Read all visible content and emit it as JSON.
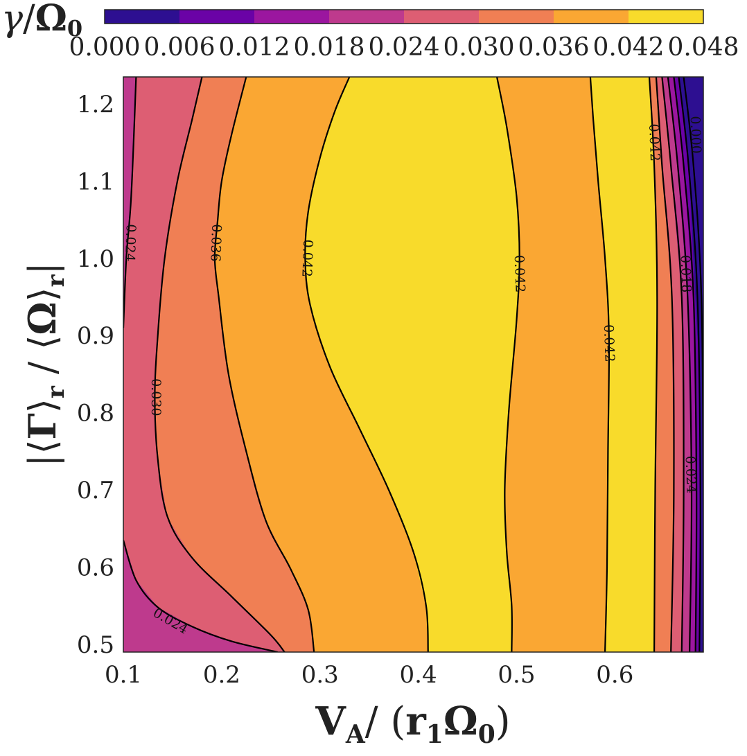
{
  "chart_data": {
    "type": "contour",
    "colorbar": {
      "label": "γ/Ω₀",
      "ticks": [
        "0.000",
        "0.006",
        "0.012",
        "0.018",
        "0.024",
        "0.030",
        "0.036",
        "0.042",
        "0.048"
      ],
      "levels": [
        0.0,
        0.006,
        0.012,
        0.018,
        0.024,
        0.03,
        0.036,
        0.042,
        0.048
      ],
      "colors": [
        "#2d0f91",
        "#6a02a6",
        "#9b169f",
        "#be3a8d",
        "#dd5e73",
        "#f07f54",
        "#faa733",
        "#f8db2b"
      ]
    },
    "xlabel": "V_A/(r₁Ω₀)",
    "ylabel": "|⟨Γ⟩_r / ⟨Ω⟩_r|",
    "xlim": [
      0.1,
      0.69
    ],
    "ylim": [
      0.49,
      1.235
    ],
    "x_ticks": [
      "0.1",
      "0.2",
      "0.3",
      "0.4",
      "0.5",
      "0.6"
    ],
    "x_tick_values": [
      0.1,
      0.2,
      0.3,
      0.4,
      0.5,
      0.6
    ],
    "y_ticks": [
      "0.5",
      "0.6",
      "0.7",
      "0.8",
      "0.9",
      "1.0",
      "1.1",
      "1.2"
    ],
    "y_tick_values": [
      0.5,
      0.6,
      0.7,
      0.8,
      0.9,
      1.0,
      1.1,
      1.2
    ],
    "contours": [
      {
        "level": 0.024,
        "segments": [
          [
            [
              0.1,
              0.91
            ],
            [
              0.103,
              1.0
            ],
            [
              0.108,
              1.08
            ],
            [
              0.113,
              1.235
            ]
          ],
          [
            [
              0.1,
              0.635
            ],
            [
              0.113,
              0.583
            ],
            [
              0.135,
              0.548
            ],
            [
              0.17,
              0.523
            ],
            [
              0.21,
              0.504
            ],
            [
              0.257,
              0.49
            ]
          ]
        ]
      },
      {
        "level": 0.03,
        "segments": [
          [
            [
              0.264,
              0.49
            ],
            [
              0.25,
              0.512
            ],
            [
              0.21,
              0.562
            ],
            [
              0.17,
              0.612
            ],
            [
              0.145,
              0.665
            ],
            [
              0.135,
              0.74
            ],
            [
              0.132,
              0.82
            ],
            [
              0.135,
              0.9
            ],
            [
              0.142,
              1.0
            ],
            [
              0.155,
              1.1
            ],
            [
              0.17,
              1.18
            ],
            [
              0.18,
              1.235
            ]
          ]
        ]
      },
      {
        "level": 0.036,
        "segments": [
          [
            [
              0.294,
              0.49
            ],
            [
              0.288,
              0.545
            ],
            [
              0.27,
              0.598
            ],
            [
              0.245,
              0.66
            ],
            [
              0.225,
              0.75
            ],
            [
              0.207,
              0.85
            ],
            [
              0.197,
              0.95
            ],
            [
              0.193,
              1.0
            ],
            [
              0.196,
              1.05
            ],
            [
              0.2,
              1.1
            ],
            [
              0.21,
              1.16
            ],
            [
              0.225,
              1.235
            ]
          ]
        ]
      },
      {
        "level": 0.042,
        "segments": [
          [
            [
              0.41,
              0.49
            ],
            [
              0.408,
              0.55
            ],
            [
              0.395,
              0.62
            ],
            [
              0.37,
              0.7
            ],
            [
              0.34,
              0.78
            ],
            [
              0.31,
              0.86
            ],
            [
              0.29,
              0.94
            ],
            [
              0.285,
              1.0
            ],
            [
              0.288,
              1.06
            ],
            [
              0.3,
              1.13
            ],
            [
              0.315,
              1.19
            ],
            [
              0.33,
              1.235
            ]
          ],
          [
            [
              0.495,
              0.49
            ],
            [
              0.495,
              0.55
            ],
            [
              0.49,
              0.62
            ],
            [
              0.488,
              0.7
            ],
            [
              0.492,
              0.8
            ],
            [
              0.5,
              0.92
            ],
            [
              0.503,
              1.0
            ],
            [
              0.5,
              1.08
            ],
            [
              0.49,
              1.17
            ],
            [
              0.48,
              1.235
            ]
          ],
          [
            [
              0.59,
              0.49
            ],
            [
              0.592,
              0.6
            ],
            [
              0.593,
              0.75
            ],
            [
              0.594,
              0.9
            ],
            [
              0.59,
              1.0
            ],
            [
              0.583,
              1.1
            ],
            [
              0.578,
              1.18
            ],
            [
              0.575,
              1.235
            ]
          ],
          [
            [
              0.64,
              0.49
            ],
            [
              0.641,
              0.7
            ],
            [
              0.643,
              0.95
            ],
            [
              0.64,
              1.12
            ],
            [
              0.635,
              1.235
            ]
          ]
        ]
      },
      {
        "level": 0.036,
        "segments": [
          [
            [
              0.657,
              0.49
            ],
            [
              0.66,
              0.7
            ],
            [
              0.658,
              0.95
            ],
            [
              0.648,
              1.12
            ],
            [
              0.642,
              1.235
            ]
          ]
        ]
      },
      {
        "level": 0.03,
        "segments": [
          [
            [
              0.668,
              0.49
            ],
            [
              0.67,
              0.7
            ],
            [
              0.668,
              0.95
            ],
            [
              0.657,
              1.12
            ],
            [
              0.648,
              1.235
            ]
          ]
        ]
      },
      {
        "level": 0.024,
        "segments": [
          [
            [
              0.676,
              0.49
            ],
            [
              0.678,
              0.7
            ],
            [
              0.674,
              0.95
            ],
            [
              0.664,
              1.12
            ],
            [
              0.654,
              1.235
            ]
          ]
        ]
      },
      {
        "level": 0.018,
        "segments": [
          [
            [
              0.682,
              0.49
            ],
            [
              0.683,
              0.7
            ],
            [
              0.68,
              0.95
            ],
            [
              0.67,
              1.12
            ],
            [
              0.66,
              1.235
            ]
          ]
        ]
      },
      {
        "level": 0.012,
        "segments": [
          [
            [
              0.686,
              0.49
            ],
            [
              0.687,
              0.7
            ],
            [
              0.684,
              0.95
            ],
            [
              0.675,
              1.12
            ],
            [
              0.665,
              1.235
            ]
          ]
        ]
      },
      {
        "level": 0.006,
        "segments": [
          [
            [
              0.69,
              0.49
            ],
            [
              0.69,
              0.7
            ],
            [
              0.688,
              0.95
            ],
            [
              0.68,
              1.12
            ],
            [
              0.67,
              1.235
            ]
          ]
        ]
      }
    ],
    "contour_labels": [
      {
        "text": "0.024",
        "x": 0.107,
        "y": 1.02,
        "rotation": 92
      },
      {
        "text": "0.024",
        "x": 0.148,
        "y": 0.53,
        "rotation": 30
      },
      {
        "text": "0.030",
        "x": 0.133,
        "y": 0.82,
        "rotation": 90
      },
      {
        "text": "0.036",
        "x": 0.194,
        "y": 1.02,
        "rotation": 92
      },
      {
        "text": "0.042",
        "x": 0.287,
        "y": 1.0,
        "rotation": 92
      },
      {
        "text": "0.042",
        "x": 0.503,
        "y": 0.98,
        "rotation": 88
      },
      {
        "text": "0.042",
        "x": 0.594,
        "y": 0.89,
        "rotation": 88
      },
      {
        "text": "0.042",
        "x": 0.64,
        "y": 1.15,
        "rotation": 88
      },
      {
        "text": "0.018",
        "x": 0.672,
        "y": 0.98,
        "rotation": 88
      },
      {
        "text": "0.024",
        "x": 0.677,
        "y": 0.72,
        "rotation": 88
      },
      {
        "text": "0.000",
        "x": 0.682,
        "y": 1.16,
        "rotation": 88
      }
    ]
  }
}
